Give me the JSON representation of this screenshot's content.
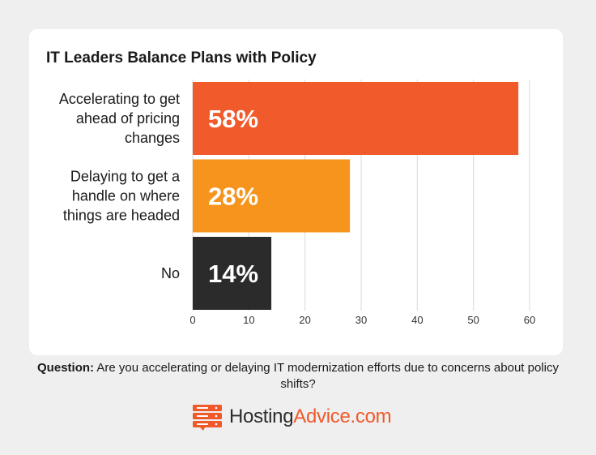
{
  "chart_data": {
    "type": "bar",
    "orientation": "horizontal",
    "title": "IT Leaders Balance Plans with Policy",
    "categories": [
      [
        "Accelerating to get",
        "ahead of pricing",
        "changes"
      ],
      [
        "Delaying to get a",
        "handle on where",
        "things are headed"
      ],
      [
        "No"
      ]
    ],
    "values": [
      58,
      28,
      14
    ],
    "value_labels": [
      "58%",
      "28%",
      "14%"
    ],
    "colors": [
      "#f15a2b",
      "#f7941d",
      "#2b2b2b"
    ],
    "xlim": [
      0,
      60
    ],
    "xticks": [
      "0",
      "10",
      "20",
      "30",
      "40",
      "50",
      "60"
    ],
    "grid": true
  },
  "question": {
    "label": "Question:",
    "text": "Are you accelerating or delaying IT modernization efforts due to concerns about policy shifts?"
  },
  "logo": {
    "part1": "Hosting",
    "part2": "Advice.com",
    "icon": "server-stack-icon"
  }
}
